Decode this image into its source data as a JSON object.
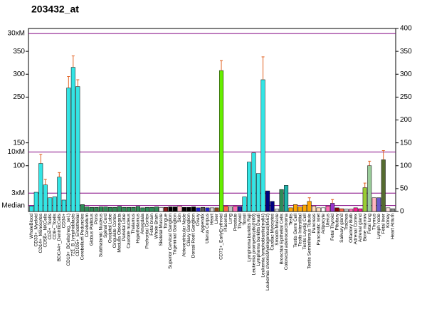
{
  "chart_data": {
    "type": "bar",
    "title": "203432_at",
    "categories": [
      "WholeBlood",
      "CD33+_Myeloid",
      "CD14+_Monocytes",
      "CD56+_NKCells",
      "CD4+_Tcells",
      "CD8+_Tcells",
      "BDCA4+_DentriticCells",
      "CD34+",
      "CD19+_BCells(neg._sel.)",
      "721_B_lymphoblasts",
      "CD105+_Endothelial",
      "Cerebellum Peduncles",
      "Cerebellum",
      "Globus Pallidus",
      "Pons",
      "Subthalamic Nucleus",
      "Spinal Cord",
      "Occipital Lobe",
      "Cingulate Cortex",
      "Medulla Oblongata",
      "Parietal Lobe",
      "Caudate nucleus",
      "Thalamus",
      "Hypothalamus",
      "Amygdala",
      "Prefrontal Cortex",
      "Fetal brain",
      "Whole Brain",
      "Skeletal Muscle",
      "Tongue",
      "Superior Cervical Ganglion",
      "Trigeminal Ganglion",
      "Skin",
      "Atrioventricular Node",
      "Ciliary Ganglion",
      "Dorsal Root Ganglion",
      "Ovary",
      "Appendix",
      "Uterus Corpus",
      "Heart",
      "Liver",
      "CD71+_EarlyErythroid",
      "Placenta",
      "Lung",
      "Prostate",
      "Thyroid",
      "Tonsil",
      "Lymphoma burkitts Raji",
      "Leukemia promyelocytic(hl60)",
      "Lymphoma burkitts Daudi",
      "Leukemia lymphoblastic(molt4)",
      "Leukemia chronicMyelogenous(k562)",
      "Cardiac Myocytes",
      "Smooth Muscle",
      "Bronchial Epithelial Cells",
      "Colorectal adenocarcinoma",
      "Testis",
      "Testis Germ Cell",
      "Testis Interstitial",
      "Testis Leydig Cell",
      "Testis Seminiferous Tubule",
      "Pancreas",
      "Pancreatic Islet",
      "Adipocyte",
      "Uterus",
      "Fetal Thyroid",
      "Pituitary",
      "Salivary gland",
      "Trachea",
      "Olfactory Bulb",
      "Adrenal Cortex",
      "Adrenal gland",
      "Bone marrow",
      "Fetal lung",
      "Thymus",
      "Lymph node",
      "Fetal liver",
      "Kidney",
      "Heart Atrium"
    ],
    "values": [
      12,
      42,
      105,
      58,
      30,
      32,
      75,
      25,
      270,
      315,
      273,
      15,
      10,
      9,
      9,
      10,
      10,
      9,
      9,
      11,
      9,
      9,
      9,
      11,
      8,
      9,
      9,
      10,
      9,
      9,
      10,
      10,
      12,
      9,
      9,
      10,
      8,
      9,
      8,
      8,
      8,
      308,
      12,
      10,
      12,
      11,
      32,
      108,
      128,
      83,
      288,
      45,
      22,
      5,
      48,
      57,
      8,
      15,
      10,
      14,
      22,
      12,
      8,
      8,
      12,
      18,
      8,
      6,
      5,
      5,
      8,
      6,
      52,
      100,
      30,
      30,
      113,
      8,
      6
    ],
    "errors": [
      null,
      null,
      20,
      12,
      null,
      null,
      10,
      null,
      25,
      25,
      15,
      null,
      null,
      null,
      null,
      null,
      null,
      null,
      null,
      null,
      null,
      null,
      null,
      null,
      null,
      null,
      null,
      null,
      null,
      null,
      null,
      null,
      null,
      null,
      null,
      null,
      null,
      null,
      null,
      null,
      null,
      22,
      null,
      null,
      null,
      null,
      null,
      null,
      null,
      null,
      50,
      null,
      null,
      null,
      null,
      null,
      null,
      null,
      null,
      null,
      8,
      null,
      null,
      null,
      null,
      8,
      null,
      null,
      null,
      null,
      null,
      null,
      10,
      10,
      null,
      null,
      20,
      null,
      null
    ],
    "colors": [
      "#33e5e5",
      "#33e5e5",
      "#33e5e5",
      "#33e5e5",
      "#33e5e5",
      "#33e5e5",
      "#33e5e5",
      "#33e5e5",
      "#33e5e5",
      "#33e5e5",
      "#33e5e5",
      "#2e8b57",
      "#2e8b57",
      "#2e8b57",
      "#2e8b57",
      "#2e8b57",
      "#2e8b57",
      "#2e8b57",
      "#2e8b57",
      "#2e8b57",
      "#2e8b57",
      "#2e8b57",
      "#2e8b57",
      "#2e8b57",
      "#2e8b57",
      "#2e8b57",
      "#2e8b57",
      "#2e8b57",
      "#f0f0f0",
      "#8b1a1a",
      "#000000",
      "#000000",
      "#ffb6c1",
      "#000000",
      "#000000",
      "#000000",
      "#1e1ecc",
      "#555555",
      "#1e1ecc",
      "#d3d3d3",
      "#8b4513",
      "#66ee00",
      "#ff6347",
      "#c0c0c0",
      "#ff69b4",
      "#2020a0",
      "#33e5e5",
      "#33e5e5",
      "#33e5e5",
      "#33e5e5",
      "#33e5e5",
      "#000080",
      "#000080",
      "#d3d3d3",
      "#2e8b57",
      "#20b2aa",
      "#ffa500",
      "#ffa500",
      "#ffa500",
      "#ffa500",
      "#ffa500",
      "#ffdab9",
      "#ffdab9",
      "#ffffff",
      "#ff69b4",
      "#9932cc",
      "#8b0000",
      "#ff6347",
      "#c0c0c0",
      "#ff69b4",
      "#ff1493",
      "#ff1493",
      "#9acd32",
      "#9acd9a",
      "#ffb6c1",
      "#6a5acd",
      "#556b2f",
      "#ffe4e1",
      "#888888"
    ],
    "ylim": [
      0,
      400
    ],
    "yticks": [
      {
        "value": 389,
        "label": "30xM"
      },
      350,
      300,
      250,
      150,
      {
        "value": 130,
        "label": "10xM"
      },
      100,
      {
        "value": 40,
        "label": "3xM"
      },
      {
        "value": 13,
        "label": "Median"
      }
    ],
    "y2lim": [
      0,
      400
    ],
    "y2ticks": [
      0,
      50,
      100,
      150,
      200,
      250,
      300,
      350,
      400
    ]
  }
}
